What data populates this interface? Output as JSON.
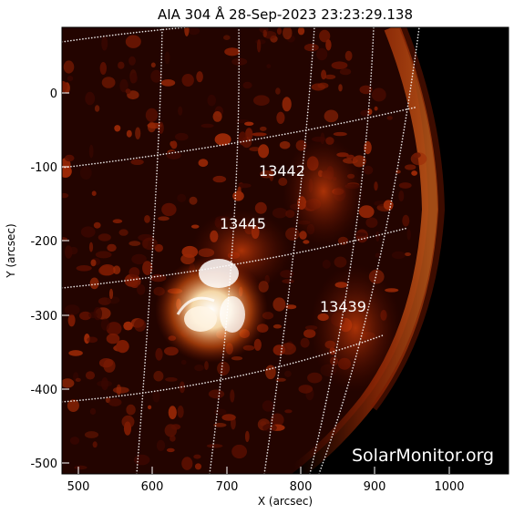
{
  "title": "AIA 304 Å 28-Sep-2023 23:23:29.138",
  "axes": {
    "xlabel": "X (arcsec)",
    "ylabel": "Y (arcsec)",
    "xticks": [
      "500",
      "600",
      "700",
      "800",
      "900",
      "1000"
    ],
    "yticks": [
      "0",
      "-100",
      "-200",
      "-300",
      "-400",
      "-500"
    ]
  },
  "active_regions": [
    {
      "id": "ar-13442",
      "label": "13442"
    },
    {
      "id": "ar-13445",
      "label": "13445"
    },
    {
      "id": "ar-13439",
      "label": "13439"
    }
  ],
  "watermark": "SolarMonitor.org",
  "colors": {
    "background": "#ffffff",
    "sun_dark": "#180200",
    "sun_mid": "#8a1a00",
    "sun_bright": "#fff2d8",
    "space": "#000000",
    "grid": "#ffffff"
  }
}
